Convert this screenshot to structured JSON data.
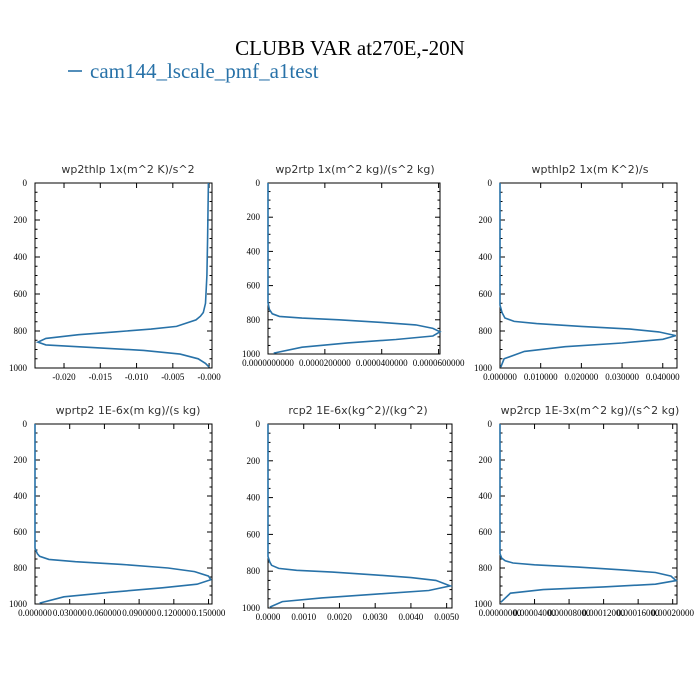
{
  "figure": {
    "title": "CLUBB VAR at270E,-20N",
    "legend_label": "cam144_lscale_pmf_a1test",
    "legend_color": "#2872a8"
  },
  "chart_data": [
    {
      "type": "line",
      "title": "wp2thlp   1x(m^2 K)/s^2",
      "xlim": [
        -0.024,
        0.0004
      ],
      "ylim": [
        1000,
        0
      ],
      "x_ticks": [
        -0.02,
        -0.015,
        -0.01,
        -0.005,
        -0.0
      ],
      "x_tick_labels": [
        "-0.020",
        "-0.015",
        "-0.010",
        "-0.005",
        "-0.000"
      ],
      "y_ticks": [
        0,
        200,
        400,
        600,
        800,
        1000
      ],
      "y_tick_labels": [
        "0",
        "200",
        "400",
        "600",
        "800",
        "1000"
      ],
      "series": [
        {
          "x": [
            -0.0001,
            -0.0002,
            -0.0003,
            -0.0005,
            -0.0008,
            -0.0012,
            -0.0018,
            -0.0045,
            -0.008,
            -0.013,
            -0.018,
            -0.0225,
            -0.0236,
            -0.0225,
            -0.016,
            -0.009,
            -0.004,
            -0.0015,
            -0.0005,
            0.0
          ],
          "y": [
            0,
            300,
            500,
            650,
            700,
            720,
            740,
            775,
            790,
            805,
            820,
            840,
            860,
            875,
            890,
            905,
            925,
            950,
            975,
            995
          ]
        }
      ]
    },
    {
      "type": "line",
      "title": "wp2rtp   1x(m^2 kg)/(s^2 kg)",
      "xlim": [
        0,
        6.05e-05
      ],
      "ylim": [
        1000,
        0
      ],
      "x_ticks": [
        0,
        2e-05,
        4e-05,
        6e-05
      ],
      "x_tick_labels": [
        "0.0000000000",
        "0.0000200000",
        "0.0000400000",
        "0.0000600000"
      ],
      "y_ticks": [
        0,
        200,
        400,
        600,
        800,
        1000
      ],
      "y_tick_labels": [
        "0",
        "200",
        "400",
        "600",
        "800",
        "1000"
      ],
      "series": [
        {
          "x": [
            0,
            0,
            5e-07,
            1.5e-06,
            4e-06,
            1.2e-05,
            2.5e-05,
            4e-05,
            5.2e-05,
            5.8e-05,
            6.05e-05,
            5.8e-05,
            4.5e-05,
            2.8e-05,
            1.2e-05,
            2e-06
          ],
          "y": [
            0,
            700,
            740,
            765,
            780,
            790,
            800,
            815,
            830,
            850,
            870,
            895,
            915,
            935,
            960,
            995
          ]
        }
      ]
    },
    {
      "type": "line",
      "title": "wpthlp2   1x(m K^2)/s",
      "xlim": [
        0,
        0.0435
      ],
      "ylim": [
        1000,
        0
      ],
      "x_ticks": [
        0,
        0.01,
        0.02,
        0.03,
        0.04
      ],
      "x_tick_labels": [
        "0.000000",
        "0.010000",
        "0.020000",
        "0.030000",
        "0.040000"
      ],
      "y_ticks": [
        0,
        200,
        400,
        600,
        800,
        1000
      ],
      "y_tick_labels": [
        "0",
        "200",
        "400",
        "600",
        "800",
        "1000"
      ],
      "series": [
        {
          "x": [
            0,
            0,
            0.0005,
            0.0012,
            0.0035,
            0.009,
            0.02,
            0.032,
            0.039,
            0.0432,
            0.04,
            0.03,
            0.016,
            0.006,
            0.001,
            0.0002
          ],
          "y": [
            0,
            660,
            700,
            730,
            748,
            760,
            775,
            790,
            805,
            825,
            845,
            865,
            885,
            910,
            950,
            995
          ]
        }
      ]
    },
    {
      "type": "line",
      "title": "wprtp2   1E-6x(m kg)/(s kg)",
      "xlim": [
        0,
        0.153
      ],
      "ylim": [
        1000,
        0
      ],
      "x_ticks": [
        0,
        0.03,
        0.06,
        0.09,
        0.12,
        0.15
      ],
      "x_tick_labels": [
        "0.000000",
        "0.030000",
        "0.060000",
        "0.090000",
        "0.120000",
        "0.150000"
      ],
      "y_ticks": [
        0,
        200,
        400,
        600,
        800,
        1000
      ],
      "y_tick_labels": [
        "0",
        "200",
        "400",
        "600",
        "800",
        "1000"
      ],
      "series": [
        {
          "x": [
            0,
            0,
            0.002,
            0.004,
            0.012,
            0.035,
            0.075,
            0.115,
            0.138,
            0.15,
            0.152,
            0.14,
            0.11,
            0.065,
            0.025,
            0.004
          ],
          "y": [
            0,
            690,
            720,
            735,
            752,
            765,
            780,
            800,
            820,
            845,
            865,
            890,
            910,
            935,
            960,
            995
          ]
        }
      ]
    },
    {
      "type": "line",
      "title": "rcp2   1E-6x(kg^2)/(kg^2)",
      "xlim": [
        0,
        0.00515
      ],
      "ylim": [
        1000,
        0
      ],
      "x_ticks": [
        0,
        0.001,
        0.002,
        0.003,
        0.004,
        0.005
      ],
      "x_tick_labels": [
        "0.0000",
        "0.0010",
        "0.0020",
        "0.0030",
        "0.0040",
        "0.0050"
      ],
      "y_ticks": [
        0,
        200,
        400,
        600,
        800,
        1000
      ],
      "y_tick_labels": [
        "0",
        "200",
        "400",
        "600",
        "800",
        "1000"
      ],
      "series": [
        {
          "x": [
            0,
            0,
            5e-05,
            0.0001,
            0.0003,
            0.0008,
            0.0018,
            0.003,
            0.004,
            0.0047,
            0.0051,
            0.0045,
            0.003,
            0.0015,
            0.0004,
            5e-05
          ],
          "y": [
            0,
            720,
            750,
            768,
            785,
            795,
            805,
            820,
            835,
            850,
            880,
            905,
            925,
            945,
            965,
            995
          ]
        }
      ]
    },
    {
      "type": "line",
      "title": "wp2rcp   1E-3x(m^2 kg)/(s^2 kg)",
      "xlim": [
        0,
        0.000205
      ],
      "ylim": [
        1000,
        0
      ],
      "x_ticks": [
        0,
        4e-05,
        8e-05,
        0.00012,
        0.00016,
        0.0002
      ],
      "x_tick_labels": [
        "0.00000000",
        "0.00004000",
        "0.00008000",
        "0.00012000",
        "0.00016000",
        "0.00020000"
      ],
      "y_ticks": [
        0,
        200,
        400,
        600,
        800,
        1000
      ],
      "y_tick_labels": [
        "0",
        "200",
        "400",
        "600",
        "800",
        "1000"
      ],
      "series": [
        {
          "x": [
            0,
            0,
            2e-06,
            6e-06,
            1.5e-05,
            4e-05,
            9e-05,
            0.00014,
            0.00018,
            0.000198,
            0.000204,
            0.00018,
            0.00012,
            5e-05,
            1.2e-05,
            1e-06
          ],
          "y": [
            0,
            720,
            745,
            760,
            772,
            782,
            795,
            810,
            825,
            845,
            870,
            890,
            905,
            920,
            940,
            990
          ]
        }
      ]
    }
  ]
}
